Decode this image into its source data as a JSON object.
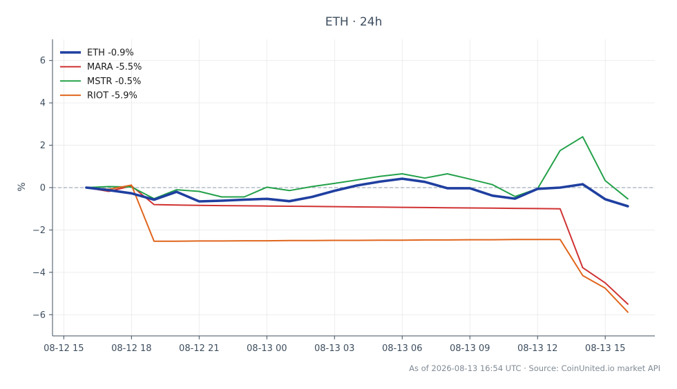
{
  "chart_data": {
    "type": "line",
    "title": "ETH · 24h",
    "xlabel": "",
    "ylabel": "%",
    "ylim": [
      -7,
      7
    ],
    "yticks": [
      6,
      4,
      2,
      0,
      -2,
      -4,
      -6
    ],
    "ytick_labels": [
      "6",
      "4",
      "2",
      "0",
      "−2",
      "−4",
      "−6"
    ],
    "xticks": [
      "08-12 15",
      "08-12 18",
      "08-12 21",
      "08-13 00",
      "08-13 03",
      "08-13 06",
      "08-13 09",
      "08-13 12",
      "08-13 15"
    ],
    "grid": true,
    "legend_position": "top-left",
    "zero_line": true,
    "footer": "As of 2026-08-13 16:54 UTC · Source: CoinUnited.io market API",
    "x": [
      "08-12 16:00",
      "08-12 17:00",
      "08-12 18:00",
      "08-12 19:00",
      "08-12 20:00",
      "08-12 21:00",
      "08-12 22:00",
      "08-12 23:00",
      "08-13 00:00",
      "08-13 01:00",
      "08-13 02:00",
      "08-13 03:00",
      "08-13 04:00",
      "08-13 05:00",
      "08-13 06:00",
      "08-13 07:00",
      "08-13 08:00",
      "08-13 09:00",
      "08-13 10:00",
      "08-13 11:00",
      "08-13 12:00",
      "08-13 13:00",
      "08-13 14:00",
      "08-13 15:00",
      "08-13 16:00"
    ],
    "series": [
      {
        "name": "ETH -0.9%",
        "color": "#1f3fa0",
        "width": 3.6,
        "values": [
          0.0,
          -0.12,
          -0.27,
          -0.57,
          -0.2,
          -0.65,
          -0.62,
          -0.57,
          -0.53,
          -0.64,
          -0.44,
          -0.15,
          0.1,
          0.28,
          0.42,
          0.27,
          -0.03,
          -0.03,
          -0.38,
          -0.52,
          -0.06,
          0.0,
          0.16,
          -0.55,
          -0.88
        ]
      },
      {
        "name": "MARA -5.5%",
        "color": "#d03131",
        "width": 2,
        "values": [
          0.0,
          -0.18,
          0.08,
          -0.8,
          -0.82,
          -0.84,
          -0.85,
          -0.86,
          -0.87,
          -0.88,
          -0.89,
          -0.9,
          -0.91,
          -0.92,
          -0.93,
          -0.94,
          -0.95,
          -0.96,
          -0.97,
          -0.98,
          -0.99,
          -1.0,
          -3.78,
          -4.5,
          -5.5
        ]
      },
      {
        "name": "MSTR -0.5%",
        "color": "#22a049",
        "width": 2,
        "values": [
          0.0,
          0.05,
          0.03,
          -0.52,
          -0.1,
          -0.18,
          -0.44,
          -0.44,
          0.02,
          -0.14,
          0.05,
          0.2,
          0.36,
          0.53,
          0.65,
          0.45,
          0.65,
          0.4,
          0.14,
          -0.42,
          -0.05,
          1.75,
          2.4,
          0.33,
          -0.53
        ]
      },
      {
        "name": "RIOT -5.9%",
        "color": "#e0651c",
        "width": 2,
        "values": [
          0.0,
          -0.08,
          0.12,
          -2.53,
          -2.53,
          -2.52,
          -2.52,
          -2.51,
          -2.51,
          -2.5,
          -2.5,
          -2.49,
          -2.49,
          -2.48,
          -2.48,
          -2.47,
          -2.47,
          -2.46,
          -2.46,
          -2.45,
          -2.45,
          -2.45,
          -4.15,
          -4.75,
          -5.88
        ]
      }
    ]
  }
}
